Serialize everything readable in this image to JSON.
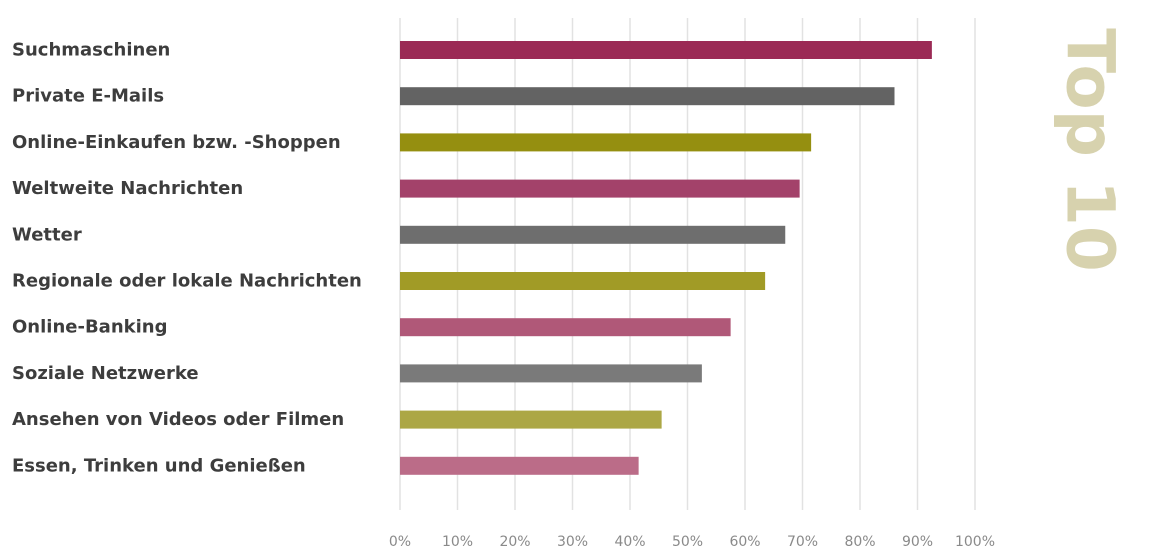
{
  "chart_data": {
    "type": "bar",
    "orientation": "horizontal",
    "title": "Top 10",
    "xlabel": "",
    "ylabel": "",
    "xlim": [
      0,
      100
    ],
    "grid": true,
    "categories": [
      "Suchmaschinen",
      "Private E-Mails",
      "Online-Einkaufen bzw. -Shoppen",
      "Weltweite Nachrichten",
      "Wetter",
      "Regionale oder lokale Nachrichten",
      "Online-Banking",
      "Soziale Netzwerke",
      "Ansehen von Videos oder Filmen",
      "Essen, Trinken und Genießen"
    ],
    "values": [
      92.5,
      86,
      71.5,
      69.5,
      67,
      63.5,
      57.5,
      52.5,
      45.5,
      41.5
    ],
    "colors": [
      "#9b2a55",
      "#636363",
      "#958f10",
      "#a3426a",
      "#6e6e6e",
      "#a19b26",
      "#b05878",
      "#7a7a7a",
      "#aca745",
      "#bb6c88"
    ],
    "x_ticks": [
      "0%",
      "10%",
      "20%",
      "30%",
      "40%",
      "50%",
      "60%",
      "70%",
      "80%",
      "90%",
      "100%"
    ],
    "title_color": "#d7d2ae"
  }
}
